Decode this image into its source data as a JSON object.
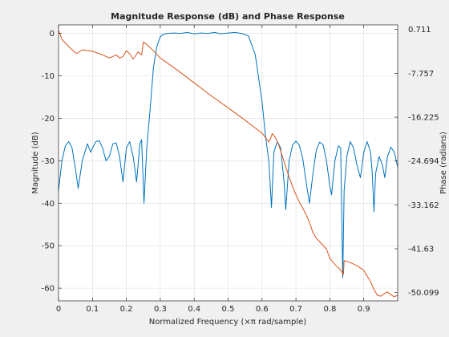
{
  "chart_data": {
    "type": "line",
    "title": "Magnitude Response (dB) and Phase Response",
    "xlabel": "Normalized Frequency  (×π rad/sample)",
    "ylabel_left": "Magnitude (dB)",
    "ylabel_right": "Phase (radians)",
    "xlim": [
      0,
      1
    ],
    "ylim_left": [
      -63,
      2
    ],
    "ylim_right": [
      -51.7,
      1.6
    ],
    "grid": true,
    "x_ticks": [
      0,
      0.1,
      0.2,
      0.3,
      0.4,
      0.5,
      0.6,
      0.7,
      0.8,
      0.9
    ],
    "x_tick_labels": [
      "0",
      "0.1",
      "0.2",
      "0.3",
      "0.4",
      "0.5",
      "0.6",
      "0.7",
      "0.8",
      "0.9"
    ],
    "y_left_ticks": [
      0,
      -10,
      -20,
      -30,
      -40,
      -50,
      -60
    ],
    "y_left_tick_labels": [
      "0",
      "-10",
      "-20",
      "-30",
      "-40",
      "-50",
      "-60"
    ],
    "y_right_ticks": [
      0.711,
      -7.757,
      -16.225,
      -24.694,
      -33.162,
      -41.63,
      -50.099
    ],
    "y_right_tick_labels": [
      "0.711",
      "-7.757",
      "-16.225",
      "-24.694",
      "-33.162",
      "-41.63",
      "-50.099"
    ],
    "colors": {
      "magnitude": "#0072BD",
      "phase": "#D95319",
      "grid": "#dcdcdc",
      "axes": "#262626"
    },
    "series": [
      {
        "axis": "left",
        "points": [
          [
            0.0,
            -37
          ],
          [
            0.01,
            -30
          ],
          [
            0.02,
            -26.5
          ],
          [
            0.03,
            -25.5
          ],
          [
            0.04,
            -27
          ],
          [
            0.05,
            -32
          ],
          [
            0.058,
            -36.5
          ],
          [
            0.07,
            -30
          ],
          [
            0.085,
            -26
          ],
          [
            0.095,
            -28
          ],
          [
            0.1,
            -27
          ],
          [
            0.11,
            -25.5
          ],
          [
            0.12,
            -25.3
          ],
          [
            0.13,
            -27
          ],
          [
            0.14,
            -30
          ],
          [
            0.15,
            -29
          ],
          [
            0.16,
            -26
          ],
          [
            0.17,
            -25.8
          ],
          [
            0.18,
            -29
          ],
          [
            0.19,
            -35
          ],
          [
            0.2,
            -27
          ],
          [
            0.21,
            -25.5
          ],
          [
            0.22,
            -29
          ],
          [
            0.23,
            -35
          ],
          [
            0.24,
            -26
          ],
          [
            0.245,
            -25
          ],
          [
            0.252,
            -40
          ],
          [
            0.26,
            -27
          ],
          [
            0.27,
            -18
          ],
          [
            0.28,
            -8
          ],
          [
            0.29,
            -3
          ],
          [
            0.3,
            -0.8
          ],
          [
            0.31,
            -0.2
          ],
          [
            0.32,
            0
          ],
          [
            0.34,
            0.1
          ],
          [
            0.36,
            0
          ],
          [
            0.38,
            0.2
          ],
          [
            0.4,
            -0.1
          ],
          [
            0.42,
            0.1
          ],
          [
            0.44,
            0
          ],
          [
            0.46,
            0.2
          ],
          [
            0.48,
            -0.1
          ],
          [
            0.5,
            0.1
          ],
          [
            0.52,
            0.2
          ],
          [
            0.54,
            0
          ],
          [
            0.56,
            -0.6
          ],
          [
            0.58,
            -5
          ],
          [
            0.6,
            -16
          ],
          [
            0.61,
            -24
          ],
          [
            0.62,
            -30
          ],
          [
            0.628,
            -41
          ],
          [
            0.635,
            -28
          ],
          [
            0.645,
            -25.5
          ],
          [
            0.655,
            -27
          ],
          [
            0.665,
            -35
          ],
          [
            0.67,
            -41.5
          ],
          [
            0.68,
            -30
          ],
          [
            0.69,
            -26.3
          ],
          [
            0.7,
            -25.4
          ],
          [
            0.71,
            -26.3
          ],
          [
            0.72,
            -29.5
          ],
          [
            0.73,
            -35
          ],
          [
            0.74,
            -40
          ],
          [
            0.75,
            -33
          ],
          [
            0.76,
            -27.5
          ],
          [
            0.77,
            -25.6
          ],
          [
            0.78,
            -26.2
          ],
          [
            0.79,
            -30
          ],
          [
            0.8,
            -36
          ],
          [
            0.805,
            -38
          ],
          [
            0.815,
            -30
          ],
          [
            0.825,
            -26.5
          ],
          [
            0.832,
            -27
          ],
          [
            0.838,
            -57.5
          ],
          [
            0.842,
            -37
          ],
          [
            0.85,
            -29
          ],
          [
            0.86,
            -25.5
          ],
          [
            0.87,
            -27
          ],
          [
            0.88,
            -31
          ],
          [
            0.89,
            -34
          ],
          [
            0.9,
            -28
          ],
          [
            0.91,
            -25.5
          ],
          [
            0.92,
            -28
          ],
          [
            0.925,
            -33
          ],
          [
            0.93,
            -42
          ],
          [
            0.935,
            -33
          ],
          [
            0.945,
            -29
          ],
          [
            0.955,
            -31
          ],
          [
            0.962,
            -34
          ],
          [
            0.97,
            -29
          ],
          [
            0.98,
            -26.8
          ],
          [
            0.99,
            -28
          ],
          [
            1.0,
            -31.5
          ]
        ]
      },
      {
        "axis": "right",
        "points": [
          [
            0.0,
            0.6
          ],
          [
            0.01,
            -1.2
          ],
          [
            0.03,
            -2.6
          ],
          [
            0.05,
            -3.8
          ],
          [
            0.055,
            -3.9
          ],
          [
            0.07,
            -3.2
          ],
          [
            0.1,
            -3.5
          ],
          [
            0.13,
            -4.2
          ],
          [
            0.15,
            -4.8
          ],
          [
            0.17,
            -4.2
          ],
          [
            0.18,
            -4.8
          ],
          [
            0.19,
            -4.5
          ],
          [
            0.2,
            -3.4
          ],
          [
            0.21,
            -4.0
          ],
          [
            0.22,
            -5.0
          ],
          [
            0.235,
            -3.6
          ],
          [
            0.245,
            -4.2
          ],
          [
            0.25,
            -1.7
          ],
          [
            0.26,
            -2.2
          ],
          [
            0.28,
            -3.4
          ],
          [
            0.3,
            -4.8
          ],
          [
            0.35,
            -7.1
          ],
          [
            0.4,
            -9.6
          ],
          [
            0.45,
            -12.1
          ],
          [
            0.5,
            -14.4
          ],
          [
            0.55,
            -16.8
          ],
          [
            0.6,
            -19.3
          ],
          [
            0.62,
            -21.0
          ],
          [
            0.625,
            -20.4
          ],
          [
            0.63,
            -19.4
          ],
          [
            0.64,
            -20.2
          ],
          [
            0.65,
            -21.7
          ],
          [
            0.66,
            -23.8
          ],
          [
            0.67,
            -25.8
          ],
          [
            0.68,
            -27.8
          ],
          [
            0.69,
            -29.6
          ],
          [
            0.7,
            -31.2
          ],
          [
            0.71,
            -32.6
          ],
          [
            0.72,
            -33.8
          ],
          [
            0.73,
            -35.0
          ],
          [
            0.74,
            -36.6
          ],
          [
            0.75,
            -38.5
          ],
          [
            0.76,
            -39.6
          ],
          [
            0.77,
            -40.3
          ],
          [
            0.78,
            -41.0
          ],
          [
            0.79,
            -41.7
          ],
          [
            0.8,
            -43.5
          ],
          [
            0.81,
            -44.3
          ],
          [
            0.82,
            -45.0
          ],
          [
            0.83,
            -45.6
          ],
          [
            0.84,
            -46.6
          ],
          [
            0.842,
            -43.9
          ],
          [
            0.86,
            -44.3
          ],
          [
            0.88,
            -44.9
          ],
          [
            0.9,
            -45.8
          ],
          [
            0.92,
            -48.0
          ],
          [
            0.93,
            -49.5
          ],
          [
            0.94,
            -50.6
          ],
          [
            0.95,
            -50.8
          ],
          [
            0.96,
            -50.3
          ],
          [
            0.97,
            -50.0
          ],
          [
            0.98,
            -50.5
          ],
          [
            0.99,
            -50.9
          ],
          [
            1.0,
            -50.6
          ]
        ]
      }
    ]
  }
}
